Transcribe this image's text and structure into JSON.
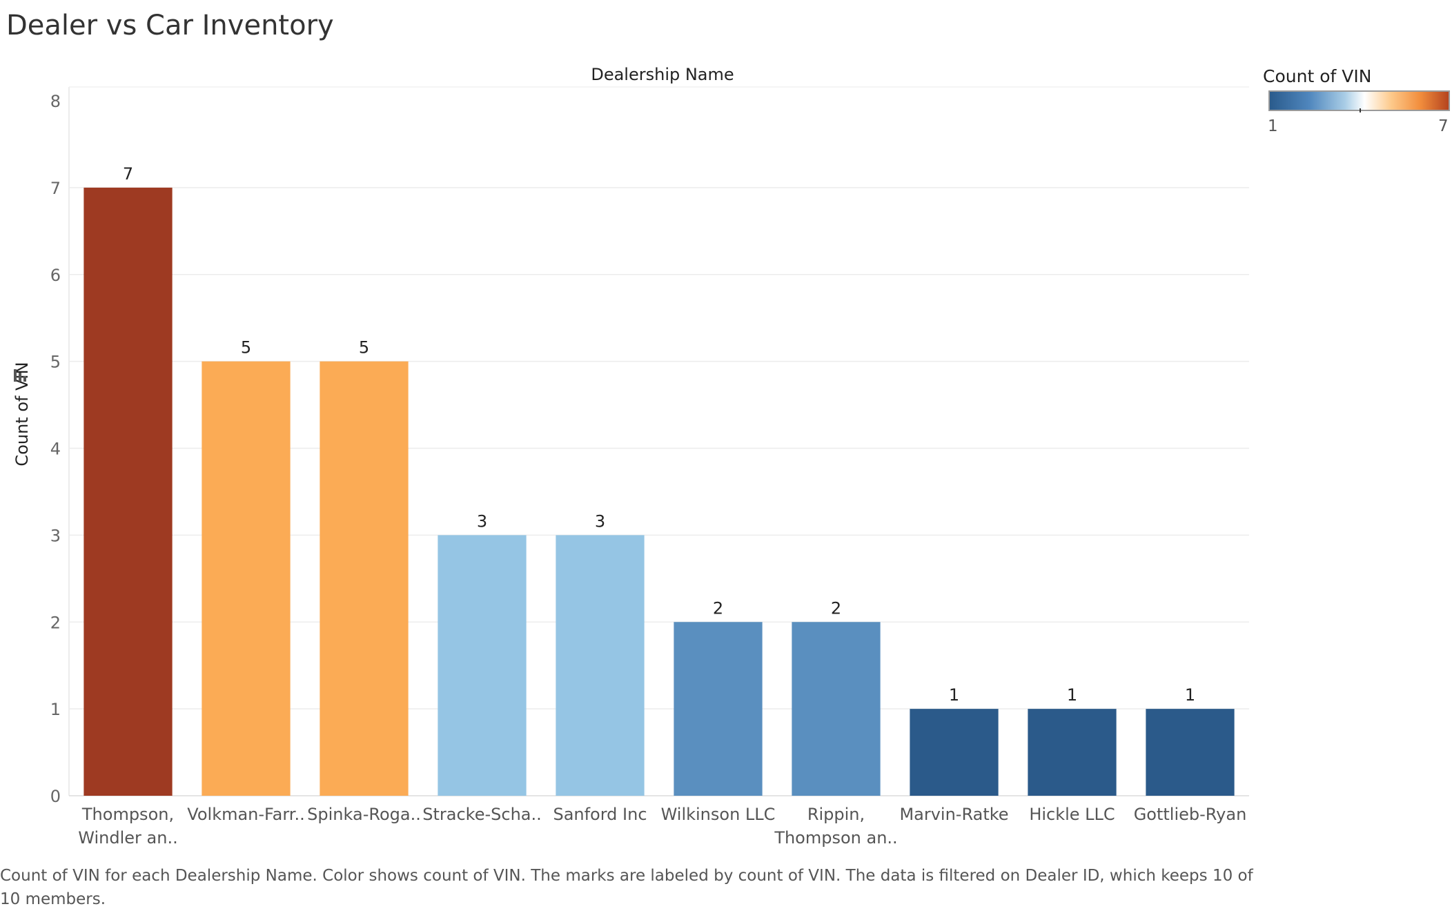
{
  "chart_data": {
    "type": "bar",
    "title": "Dealer vs Car Inventory",
    "xlabel": "Dealership Name",
    "ylabel": "Count of VIN",
    "ylim": [
      0,
      8
    ],
    "yticks": [
      "0",
      "1",
      "2",
      "3",
      "4",
      "5",
      "6",
      "7",
      "8"
    ],
    "categories": [
      [
        "Thompson,",
        "Windler an.."
      ],
      [
        "Volkman-Farr.."
      ],
      [
        "Spinka-Roga.."
      ],
      [
        "Stracke-Scha.."
      ],
      [
        "Sanford Inc"
      ],
      [
        "Wilkinson LLC"
      ],
      [
        "Rippin,",
        "Thompson an.."
      ],
      [
        "Marvin-Ratke"
      ],
      [
        "Hickle LLC"
      ],
      [
        "Gottlieb-Ryan"
      ]
    ],
    "values": [
      7,
      5,
      5,
      3,
      3,
      2,
      2,
      1,
      1,
      1
    ],
    "colors": [
      "#9e3a22",
      "#fbab55",
      "#fbab55",
      "#95c5e4",
      "#95c5e4",
      "#5a8fbf",
      "#5a8fbf",
      "#2b5a8a",
      "#2b5a8a",
      "#2b5a8a"
    ],
    "grid": true,
    "legend": {
      "title": "Count of VIN",
      "min_label": "1",
      "max_label": "7",
      "placement": "top-right"
    }
  },
  "caption": "Count of VIN for each Dealership Name.  Color shows count of VIN.  The marks are labeled by count of VIN. The data is filtered on Dealer ID, which keeps 10 of 10 members."
}
